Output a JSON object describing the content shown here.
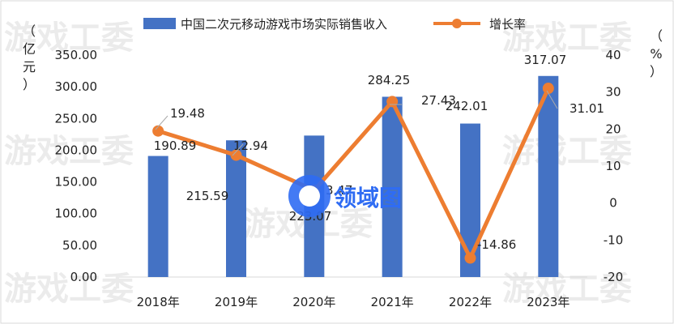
{
  "watermark": {
    "text": "游戏工委"
  },
  "logo": {
    "text": "领域图",
    "accent": "#2f6cf3"
  },
  "colors": {
    "bar": "#4472c4",
    "line": "#ed7d31",
    "marker": "#ed7d31"
  },
  "chart_data": {
    "type": "bar+line",
    "categories": [
      "2018年",
      "2019年",
      "2020年",
      "2021年",
      "2022年",
      "2023年"
    ],
    "series": [
      {
        "name": "中国二次元移动游戏市场实际销售收入",
        "type": "bar",
        "axis": "left",
        "values": [
          190.89,
          215.59,
          223.07,
          284.25,
          242.01,
          317.07
        ],
        "labels": [
          "190.89",
          "215.59",
          "223.07",
          "284.25",
          "242.01",
          "317.07"
        ]
      },
      {
        "name": "增长率",
        "type": "line",
        "axis": "right",
        "values": [
          19.48,
          12.94,
          3.47,
          27.43,
          -14.86,
          31.01
        ],
        "labels": [
          "19.48",
          "12.94",
          "3.47",
          "27.43",
          "-14.86",
          "31.01"
        ]
      }
    ],
    "left_axis": {
      "title": "（亿元）",
      "ylim": [
        0,
        350
      ],
      "ticks": [
        "0.00",
        "50.00",
        "100.00",
        "150.00",
        "200.00",
        "250.00",
        "300.00",
        "350.00"
      ]
    },
    "right_axis": {
      "title": "（%）",
      "ylim": [
        -20,
        40
      ],
      "ticks": [
        "-20",
        "-10",
        "0",
        "10",
        "20",
        "30",
        "40"
      ]
    },
    "legend_position": "top",
    "grid": false
  }
}
